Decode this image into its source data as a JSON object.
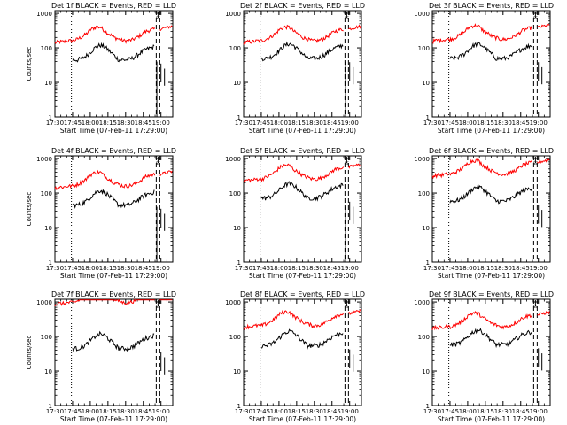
{
  "chart_data": [
    {
      "type": "line",
      "title": "Det 1f BLACK = Events, RED = LLD",
      "xlabel": "Start Time (07-Feb-11 17:29:00)",
      "ylabel": "Counts/sec"
    },
    {
      "type": "line",
      "title": "Det 2f BLACK = Events, RED = LLD",
      "xlabel": "Start Time (07-Feb-11 17:29:00)",
      "ylabel": ""
    },
    {
      "type": "line",
      "title": "Det 3f BLACK = Events, RED = LLD",
      "xlabel": "Start Time (07-Feb-11 17:29:00)",
      "ylabel": ""
    },
    {
      "type": "line",
      "title": "Det 4f BLACK = Events, RED = LLD",
      "xlabel": "Start Time (07-Feb-11 17:29:00)",
      "ylabel": "Counts/sec"
    },
    {
      "type": "line",
      "title": "Det 5f BLACK = Events, RED = LLD",
      "xlabel": "Start Time (07-Feb-11 17:29:00)",
      "ylabel": ""
    },
    {
      "type": "line",
      "title": "Det 6f BLACK = Events, RED = LLD",
      "xlabel": "Start Time (07-Feb-11 17:29:00)",
      "ylabel": ""
    },
    {
      "type": "line",
      "title": "Det 7f BLACK = Events, RED = LLD",
      "xlabel": "Start Time (07-Feb-11 17:29:00)",
      "ylabel": "Counts/sec"
    },
    {
      "type": "line",
      "title": "Det 8f BLACK = Events, RED = LLD",
      "xlabel": "Start Time (07-Feb-11 17:29:00)",
      "ylabel": ""
    },
    {
      "type": "line",
      "title": "Det 9f BLACK = Events, RED = LLD",
      "xlabel": "Start Time (07-Feb-11 17:29:00)",
      "ylabel": ""
    }
  ],
  "shared": {
    "x_ticks": [
      "17:30",
      "17:45",
      "18:00",
      "18:15",
      "18:30",
      "18:45",
      "19:00"
    ],
    "x_tick_minutes": [
      0,
      15,
      30,
      45,
      60,
      75,
      90
    ],
    "x_range_minutes": [
      0,
      100
    ],
    "y_ticks": [
      "1",
      "10",
      "100",
      "1000"
    ],
    "y_tick_values": [
      1,
      10,
      100,
      1000
    ],
    "ylim": [
      1,
      1200
    ],
    "yscale": "log",
    "events_color": "#000000",
    "lld_color": "#ff0000",
    "marker_label": "SE",
    "series_shape": {
      "red_base": [
        140,
        150,
        150,
        160,
        160,
        180,
        210,
        260,
        350,
        400,
        400,
        300,
        250,
        200,
        180,
        160,
        160,
        170,
        200,
        240,
        300,
        330,
        350
      ],
      "black_base": [
        45,
        45,
        45,
        45,
        45,
        45,
        50,
        60,
        80,
        105,
        120,
        105,
        80,
        60,
        45,
        45,
        45,
        50,
        60,
        75,
        90,
        100,
        110
      ]
    }
  }
}
